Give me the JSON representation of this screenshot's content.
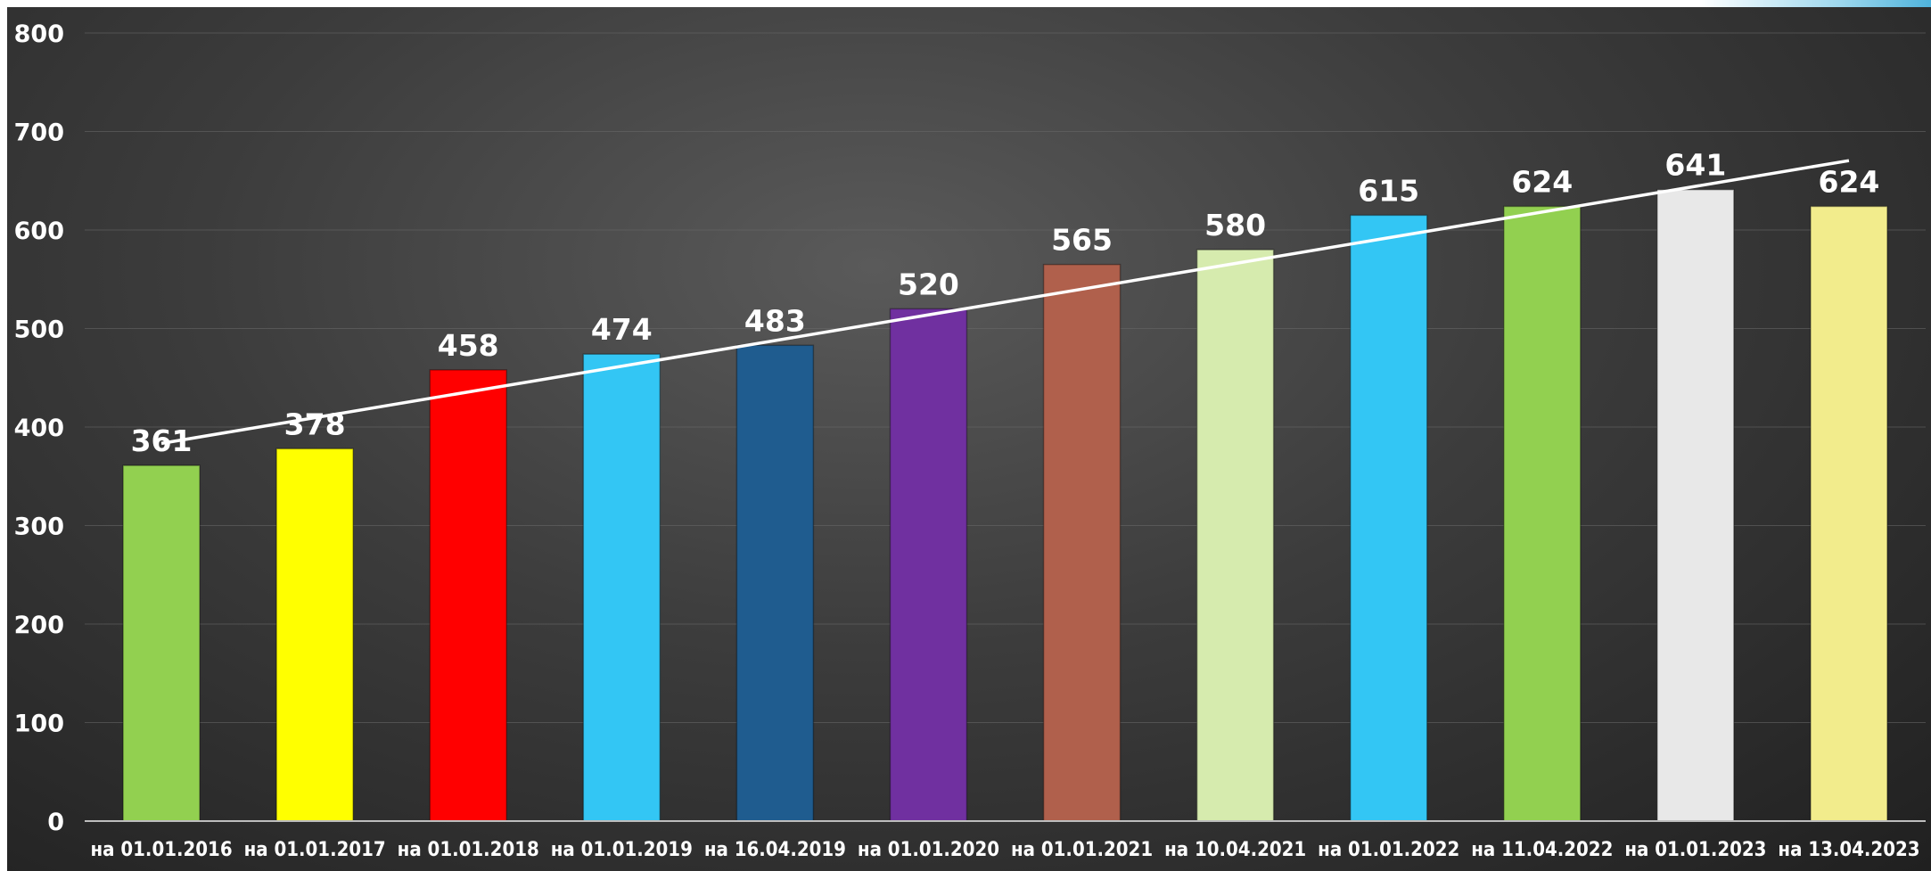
{
  "chart_data": {
    "type": "bar",
    "title": "",
    "xlabel": "",
    "ylabel": "",
    "ylim": [
      0,
      800
    ],
    "yticks": [
      0,
      100,
      200,
      300,
      400,
      500,
      600,
      700,
      800
    ],
    "grid": true,
    "legend": "none",
    "categories": [
      "на 01.01.2016",
      "на 01.01.2017",
      "на 01.01.2018",
      "на 01.01.2019",
      "на 16.04.2019",
      "на 01.01.2020",
      "на 01.01.2021",
      "на 10.04.2021",
      "на 01.01.2022",
      "на 11.04.2022",
      "на 01.01.2023",
      "на 13.04.2023"
    ],
    "values": [
      361,
      378,
      458,
      474,
      483,
      520,
      565,
      580,
      615,
      624,
      641,
      624
    ],
    "data_labels": [
      "361",
      "378",
      "458",
      "474",
      "483",
      "520",
      "565",
      "580",
      "615",
      "624",
      "641",
      "624"
    ],
    "bar_colors": [
      "#92d050",
      "#ffff00",
      "#ff0000",
      "#33c6f4",
      "#1f5c8f",
      "#7030a0",
      "#b0604c",
      "#d6ebae",
      "#33c6f4",
      "#92d050",
      "#e8e8e8",
      "#f2ec8c"
    ],
    "trendline": {
      "type": "linear",
      "color": "#ffffff"
    },
    "background": "dark radial gradient"
  }
}
